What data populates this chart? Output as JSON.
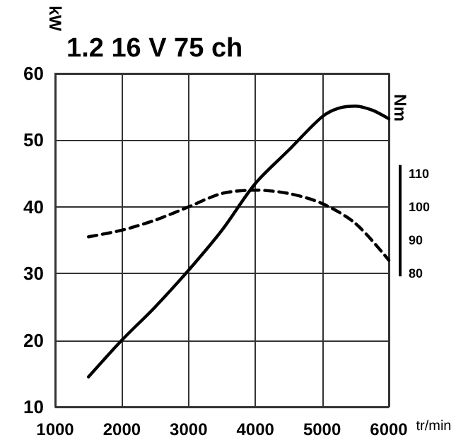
{
  "chart_data": {
    "type": "line",
    "title": "1.2 16 V 75 ch",
    "xlabel": "tr/min",
    "ylabel": "kW",
    "y2label": "Nm",
    "xlim": [
      1000,
      6000
    ],
    "xticks": [
      1000,
      2000,
      3000,
      4000,
      5000,
      6000
    ],
    "ylim": [
      10,
      60
    ],
    "yticks": [
      10,
      20,
      30,
      40,
      50,
      60
    ],
    "y2lim": [
      40,
      140
    ],
    "y2ticks": [
      80,
      90,
      100,
      110
    ],
    "grid": true,
    "marker": "none",
    "series": [
      {
        "color": "#000000",
        "line_style": "solid",
        "x": [
          1500,
          2000,
          2500,
          3000,
          3500,
          4000,
          4500,
          5000,
          5250,
          5500,
          5750,
          6000
        ],
        "values": [
          14.5,
          20,
          25,
          30.5,
          36.5,
          43.5,
          48.5,
          53.5,
          54.8,
          55.1,
          54.5,
          53.2
        ]
      },
      {
        "color": "#000000",
        "line_style": "dashed",
        "axis": "y2",
        "x": [
          1500,
          2000,
          2500,
          3000,
          3500,
          4000,
          4500,
          5000,
          5500,
          6000
        ],
        "values": [
          91,
          93,
          96,
          100,
          104,
          105,
          104,
          101,
          95,
          84
        ]
      }
    ]
  }
}
